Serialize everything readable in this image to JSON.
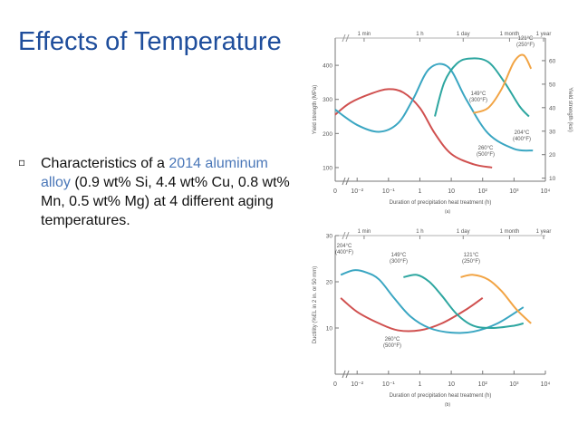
{
  "slide": {
    "title": "Effects of Temperature",
    "bullet_marker": "▫",
    "bullet": {
      "part1": "Characteristics of a ",
      "accent": "2014 aluminum alloy",
      "part2": " (0.9 wt% Si, 4.4 wt% Cu, 0.8 wt% Mn, 0.5 wt% Mg) at 4 different aging temperatures."
    },
    "colors": {
      "title": "#1f4e9c",
      "accent": "#4a77b8"
    }
  },
  "chart_data": [
    {
      "type": "line",
      "caption": "(a)",
      "xscale": "log",
      "xlabel": "Duration of precipitation heat treatment (h)",
      "ylabel": "Yield strength (MPa)",
      "ylabel_right": "Yield strength (ksi)",
      "xlim": [
        0.002,
        10000
      ],
      "ylim": [
        60,
        480
      ],
      "xticks": [
        {
          "v": 0.01,
          "label": "10⁻²"
        },
        {
          "v": 0.1,
          "label": "10⁻¹"
        },
        {
          "v": 1,
          "label": "1"
        },
        {
          "v": 10,
          "label": "10"
        },
        {
          "v": 100,
          "label": "10²"
        },
        {
          "v": 1000,
          "label": "10³"
        },
        {
          "v": 10000,
          "label": "10⁴"
        }
      ],
      "x_zero_label": "0",
      "yticks": [
        100,
        200,
        300,
        400
      ],
      "yticks_right": [
        {
          "v": 68.9,
          "label": "10"
        },
        {
          "v": 137.9,
          "label": "20"
        },
        {
          "v": 206.8,
          "label": "30"
        },
        {
          "v": 275.8,
          "label": "40"
        },
        {
          "v": 344.7,
          "label": "50"
        },
        {
          "v": 413.7,
          "label": "60"
        }
      ],
      "top_ticks": [
        {
          "v": 0.0167,
          "label": "1 min"
        },
        {
          "v": 1,
          "label": "1 h"
        },
        {
          "v": 24,
          "label": "1 day"
        },
        {
          "v": 720,
          "label": "1 month"
        },
        {
          "v": 8760,
          "label": "1 year"
        }
      ],
      "series": [
        {
          "color": "#d0504f",
          "label": [
            "260°C",
            "(500°F)"
          ],
          "x": [
            0.002,
            0.006,
            0.03,
            0.1,
            0.3,
            1,
            3,
            10,
            50,
            200
          ],
          "y": [
            255,
            290,
            318,
            330,
            320,
            275,
            200,
            140,
            110,
            100
          ]
        },
        {
          "color": "#3aa6c2",
          "label": [
            "204°C",
            "(400°F)"
          ],
          "x": [
            0.002,
            0.01,
            0.05,
            0.2,
            0.6,
            2,
            8,
            30,
            150,
            1000,
            4000
          ],
          "y": [
            270,
            225,
            205,
            230,
            300,
            390,
            395,
            300,
            200,
            155,
            150
          ]
        },
        {
          "color": "#2da6a0",
          "label": [
            "149°C",
            "(300°F)"
          ],
          "x": [
            3,
            6,
            15,
            40,
            150,
            500,
            1500,
            3000
          ],
          "y": [
            250,
            350,
            405,
            420,
            410,
            350,
            280,
            250
          ]
        },
        {
          "color": "#f2a444",
          "label": [
            "121°C",
            "(250°F)"
          ],
          "x": [
            50,
            150,
            400,
            1000,
            2000,
            3500
          ],
          "y": [
            260,
            275,
            330,
            410,
            430,
            390
          ]
        }
      ]
    },
    {
      "type": "line",
      "caption": "(b)",
      "xscale": "log",
      "xlabel": "Duration of precipitation heat treatment (h)",
      "ylabel": "Ductility (%EL in 2 in. or 50 mm)",
      "xlim": [
        0.002,
        10000
      ],
      "ylim": [
        0,
        30
      ],
      "xticks": [
        {
          "v": 0.01,
          "label": "10⁻²"
        },
        {
          "v": 0.1,
          "label": "10⁻¹"
        },
        {
          "v": 1,
          "label": "1"
        },
        {
          "v": 10,
          "label": "10"
        },
        {
          "v": 100,
          "label": "10²"
        },
        {
          "v": 1000,
          "label": "10³"
        },
        {
          "v": 10000,
          "label": "10⁴"
        }
      ],
      "x_zero_label": "0",
      "yticks": [
        10,
        20,
        30
      ],
      "top_ticks": [
        {
          "v": 0.0167,
          "label": "1 min"
        },
        {
          "v": 1,
          "label": "1 h"
        },
        {
          "v": 24,
          "label": "1 day"
        },
        {
          "v": 720,
          "label": "1 month"
        },
        {
          "v": 8760,
          "label": "1 year"
        }
      ],
      "series": [
        {
          "color": "#d0504f",
          "label": [
            "260°C",
            "(500°F)"
          ],
          "x": [
            0.003,
            0.01,
            0.05,
            0.2,
            1,
            5,
            30,
            100
          ],
          "y": [
            16.5,
            13.5,
            11,
            9.5,
            9.5,
            11,
            14,
            16.5
          ]
        },
        {
          "color": "#3aa6c2",
          "label": [
            "204°C",
            "(400°F)"
          ],
          "x": [
            0.003,
            0.008,
            0.02,
            0.05,
            0.15,
            0.5,
            2,
            10,
            50,
            300,
            2000
          ],
          "y": [
            21.5,
            22.5,
            22,
            20.5,
            16.5,
            12.5,
            10,
            9,
            9.2,
            11,
            14.5
          ]
        },
        {
          "color": "#2da6a0",
          "label": [
            "149°C",
            "(300°F)"
          ],
          "x": [
            0.3,
            0.8,
            2,
            5,
            15,
            50,
            200,
            1000,
            2000
          ],
          "y": [
            21,
            21.5,
            20,
            17,
            13,
            10.5,
            10,
            10.5,
            11
          ]
        },
        {
          "color": "#f2a444",
          "label": [
            "121°C",
            "(250°F)"
          ],
          "x": [
            20,
            50,
            150,
            400,
            1200,
            3500
          ],
          "y": [
            21,
            21.5,
            20.5,
            18,
            14,
            11
          ]
        }
      ]
    }
  ]
}
